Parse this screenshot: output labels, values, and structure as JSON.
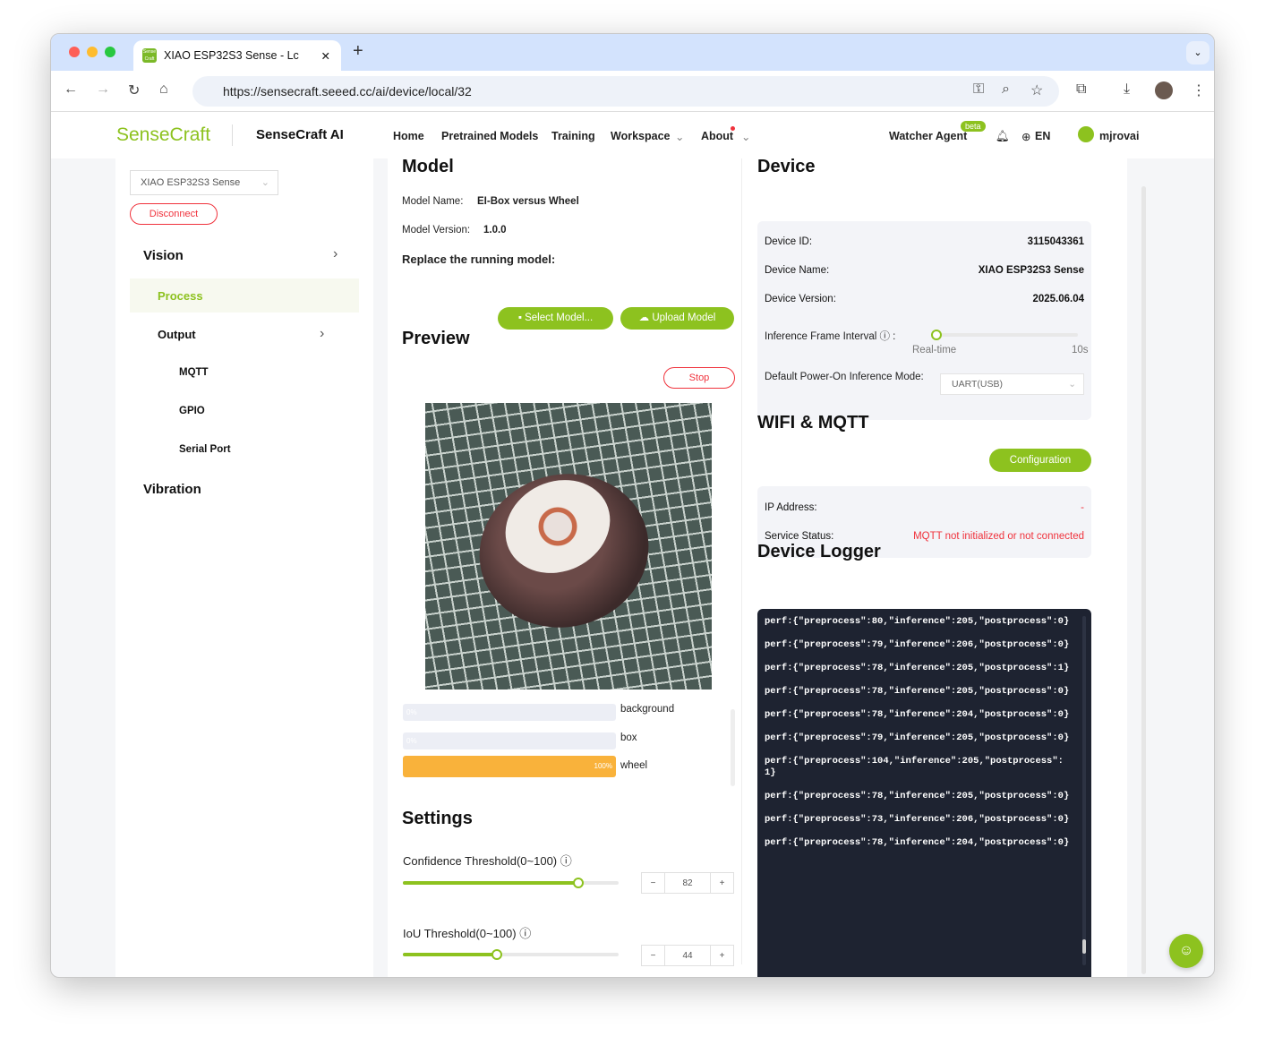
{
  "browser": {
    "tab_title": "XIAO ESP32S3 Sense - Lc",
    "url": "https://sensecraft.seeed.cc/ai/device/local/32"
  },
  "header": {
    "logo": "SenseCraft",
    "product": "SenseCraft AI",
    "nav": [
      "Home",
      "Pretrained Models",
      "Training",
      "Workspace",
      "About"
    ],
    "watcher": "Watcher Agent",
    "beta": "beta",
    "lang": "EN",
    "user": "mjrovai"
  },
  "sidebar": {
    "device_select": "XIAO ESP32S3 Sense",
    "disconnect": "Disconnect",
    "vision": "Vision",
    "process": "Process",
    "output": "Output",
    "mqtt": "MQTT",
    "gpio": "GPIO",
    "serial": "Serial Port",
    "vibration": "Vibration"
  },
  "model": {
    "title": "Model",
    "name_label": "Model Name:",
    "name": "EI-Box versus Wheel",
    "version_label": "Model Version:",
    "version": "1.0.0",
    "replace": "Replace the running model:",
    "select": "Select Model...",
    "upload": "Upload Model"
  },
  "preview": {
    "title": "Preview",
    "stop": "Stop",
    "classes": [
      {
        "label": "background",
        "pct": "0%",
        "value": 0
      },
      {
        "label": "box",
        "pct": "0%",
        "value": 0
      },
      {
        "label": "wheel",
        "pct": "100%",
        "value": 100
      }
    ],
    "bar_color": "#f9b23b"
  },
  "settings": {
    "title": "Settings",
    "conf_label": "Confidence Threshold(0~100)",
    "conf": "82",
    "iou_label": "IoU Threshold(0~100)",
    "iou": "44",
    "minus": "−",
    "plus": "+"
  },
  "device": {
    "title": "Device",
    "id_label": "Device ID:",
    "id": "3115043361",
    "name_label": "Device Name:",
    "name": "XIAO ESP32S3 Sense",
    "ver_label": "Device Version:",
    "ver": "2025.06.04",
    "interval_label": "Inference Frame Interval ⓘ :",
    "rt": "Real-time",
    "max": "10s",
    "mode_label": "Default Power-On Inference Mode:",
    "mode": "UART(USB)"
  },
  "wifi": {
    "title": "WIFI & MQTT",
    "config": "Configuration",
    "ip_label": "IP Address:",
    "ip": "-",
    "status_label": "Service Status:",
    "status": "MQTT not initialized or not connected"
  },
  "logger": {
    "title": "Device Logger",
    "lines": [
      "perf:{\"preprocess\":80,\"inference\":205,\"postprocess\":0}",
      "perf:{\"preprocess\":79,\"inference\":206,\"postprocess\":0}",
      "perf:{\"preprocess\":78,\"inference\":205,\"postprocess\":1}",
      "perf:{\"preprocess\":78,\"inference\":205,\"postprocess\":0}",
      "perf:{\"preprocess\":78,\"inference\":204,\"postprocess\":0}",
      "perf:{\"preprocess\":79,\"inference\":205,\"postprocess\":0}",
      "perf:{\"preprocess\":104,\"inference\":205,\"postprocess\":1}",
      "perf:{\"preprocess\":78,\"inference\":205,\"postprocess\":0}",
      "perf:{\"preprocess\":73,\"inference\":206,\"postprocess\":0}",
      "perf:{\"preprocess\":78,\"inference\":204,\"postprocess\":0}"
    ]
  },
  "colors": {
    "accent": "#8dc21f",
    "error": "#f0323c",
    "tabbar": "#d3e3fd"
  }
}
